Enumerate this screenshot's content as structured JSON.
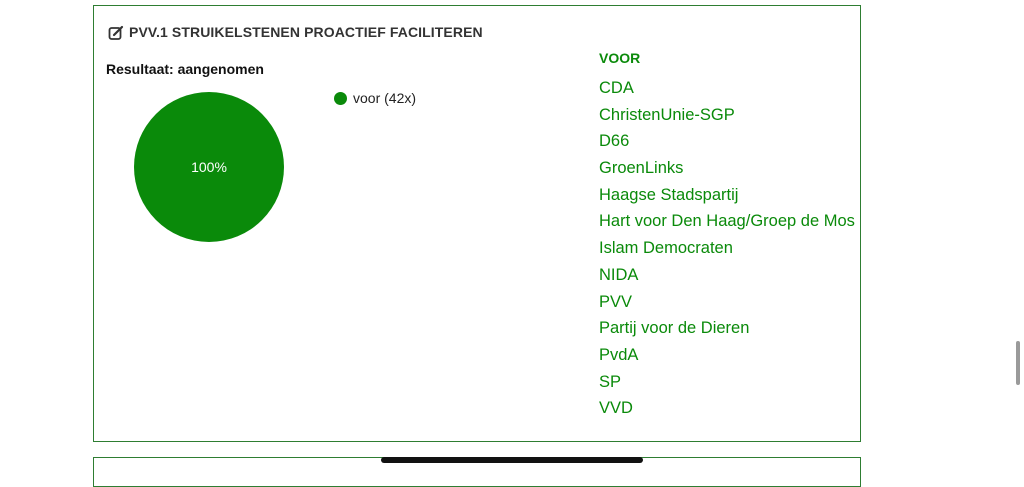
{
  "motion": {
    "title": "PVV.1 STRUIKELSTENEN PROACTIEF FACILITEREN",
    "result": "Resultaat: aangenomen",
    "icon": "edit-icon"
  },
  "chart_data": {
    "type": "pie",
    "categories": [
      "voor"
    ],
    "values": [
      42
    ],
    "slice_labels": [
      "100%"
    ],
    "legend": [
      "voor (42x)"
    ],
    "colors": [
      "#0a8a0a"
    ]
  },
  "votes": {
    "heading": "VOOR",
    "parties": [
      "CDA",
      "ChristenUnie-SGP",
      "D66",
      "GroenLinks",
      "Haagse Stadspartij",
      "Hart voor Den Haag/Groep de Mos",
      "Islam Democraten",
      "NIDA",
      "PVV",
      "Partij voor de Dieren",
      "PvdA",
      "SP",
      "VVD"
    ]
  },
  "colors": {
    "accent": "#0a8a0a",
    "border": "#2e7d32"
  }
}
